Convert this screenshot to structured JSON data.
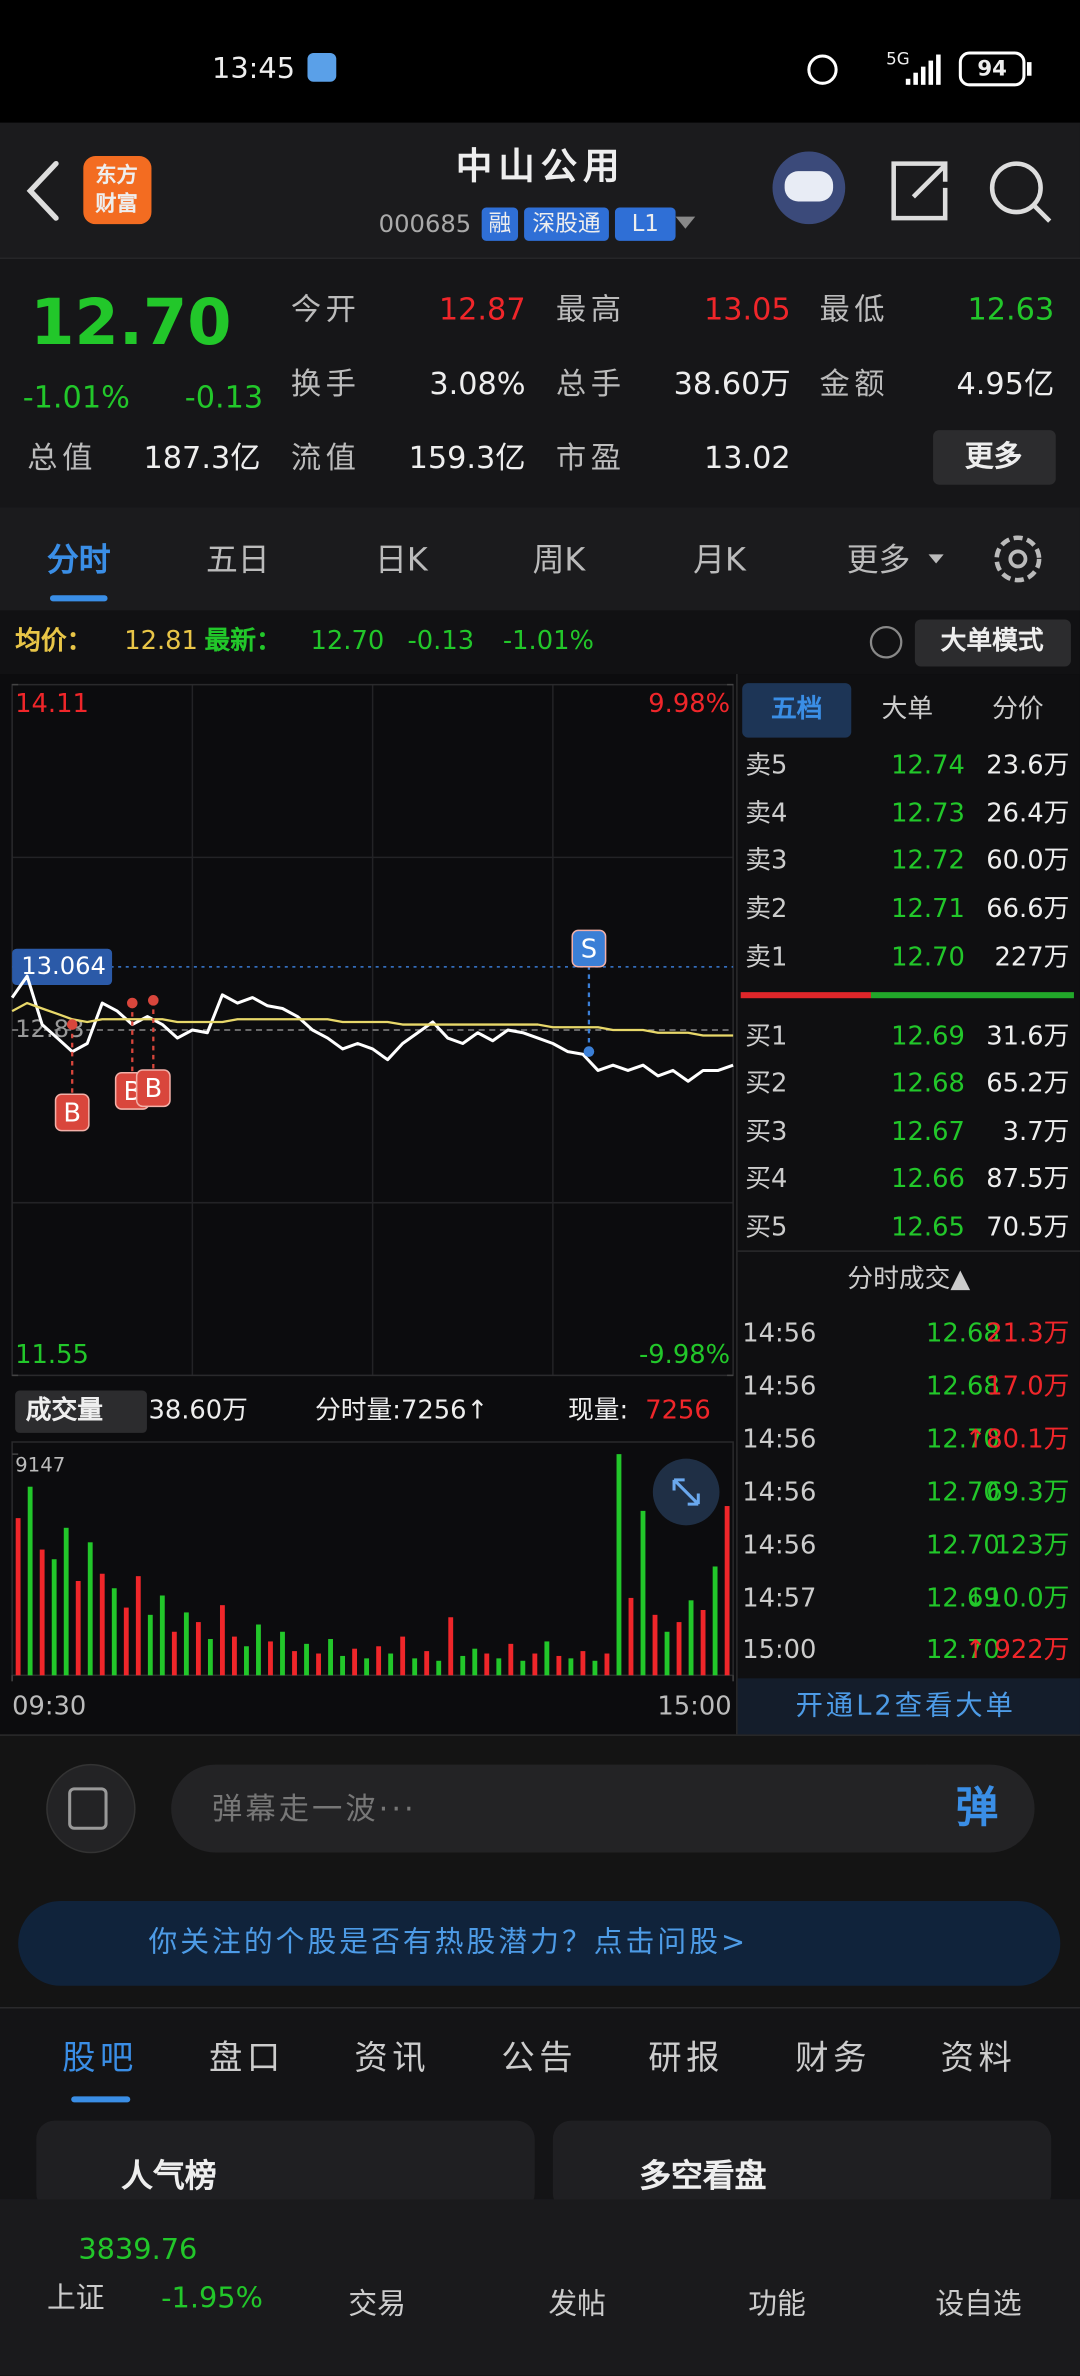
{
  "status_bar": {
    "time": "13:45",
    "network": "5G",
    "battery": "94"
  },
  "header": {
    "logo": [
      "东方",
      "财富"
    ],
    "title": "中山公用",
    "code": "000685",
    "badges": [
      "融",
      "深股通",
      "L1"
    ]
  },
  "quote": {
    "price": "12.70",
    "change_pct": "-1.01%",
    "change": "-0.13",
    "color": "#22c72a",
    "fields": [
      {
        "label": "今开",
        "value": "12.87",
        "color": "#f0262a"
      },
      {
        "label": "最高",
        "value": "13.05",
        "color": "#f0262a"
      },
      {
        "label": "最低",
        "value": "12.63",
        "color": "#22c72a"
      },
      {
        "label": "换手",
        "value": "3.08%",
        "color": "#eeeeee"
      },
      {
        "label": "总手",
        "value": "38.60万",
        "color": "#eeeeee"
      },
      {
        "label": "金额",
        "value": "4.95亿",
        "color": "#eeeeee"
      },
      {
        "label": "总值",
        "value": "187.3亿",
        "color": "#eeeeee"
      },
      {
        "label": "流值",
        "value": "159.3亿",
        "color": "#eeeeee"
      },
      {
        "label": "市盈",
        "value": "13.02",
        "color": "#eeeeee"
      }
    ],
    "more": "更多"
  },
  "period_tabs": [
    "分时",
    "五日",
    "日K",
    "周K",
    "月K",
    "更多"
  ],
  "summary": {
    "avg_label": "均价：",
    "avg": "12.81",
    "latest_label": "最新：",
    "latest": "12.70",
    "change": "-0.13",
    "change_pct": "-1.01%",
    "mode": "大单模式"
  },
  "chart_data": [
    {
      "type": "line",
      "x": [
        0,
        5,
        10,
        15,
        20,
        25,
        30,
        35,
        40,
        45,
        50,
        55,
        60,
        65,
        70,
        75,
        80,
        85,
        90,
        95,
        100,
        105,
        110,
        115,
        120,
        125,
        130,
        135,
        140,
        145,
        150,
        155,
        160,
        165,
        170,
        175,
        180,
        185,
        190,
        195,
        200,
        205,
        210,
        215,
        220,
        225,
        230,
        235,
        240
      ],
      "xlim": [
        0,
        240
      ],
      "xticks": [
        {
          "value": 0,
          "label": "09:30"
        },
        {
          "value": 240,
          "label": "15:00"
        }
      ],
      "ylim": [
        11.55,
        14.11
      ],
      "yticks": [
        14.11,
        11.55
      ],
      "y2lim": [
        -9.98,
        9.98
      ],
      "y2ticks": [
        {
          "value": 9.98,
          "label": "9.98%"
        },
        {
          "value": -9.98,
          "label": "-9.98%"
        }
      ],
      "reference": 12.83,
      "crosshair": 13.064,
      "series": [
        {
          "name": "最新",
          "color": "#ffffff",
          "values": [
            12.95,
            13.03,
            12.85,
            12.8,
            12.75,
            12.78,
            12.93,
            12.9,
            12.85,
            12.88,
            12.85,
            12.8,
            12.83,
            12.82,
            12.96,
            12.93,
            12.95,
            12.92,
            12.91,
            12.88,
            12.83,
            12.8,
            12.76,
            12.78,
            12.76,
            12.72,
            12.78,
            12.82,
            12.86,
            12.8,
            12.78,
            12.82,
            12.79,
            12.83,
            12.82,
            12.8,
            12.78,
            12.75,
            12.74,
            12.68,
            12.7,
            12.68,
            12.7,
            12.66,
            12.68,
            12.64,
            12.68,
            12.68,
            12.7
          ]
        },
        {
          "name": "均价",
          "color": "#e8d86a",
          "values": [
            12.9,
            12.93,
            12.91,
            12.89,
            12.87,
            12.86,
            12.87,
            12.87,
            12.87,
            12.87,
            12.87,
            12.86,
            12.86,
            12.86,
            12.86,
            12.87,
            12.87,
            12.87,
            12.87,
            12.87,
            12.87,
            12.87,
            12.86,
            12.86,
            12.86,
            12.86,
            12.85,
            12.85,
            12.85,
            12.85,
            12.85,
            12.85,
            12.85,
            12.85,
            12.85,
            12.85,
            12.84,
            12.84,
            12.84,
            12.84,
            12.83,
            12.83,
            12.83,
            12.82,
            12.82,
            12.82,
            12.81,
            12.81,
            12.81
          ]
        }
      ],
      "markers": [
        {
          "label": "B",
          "x": 20,
          "value": 12.85
        },
        {
          "label": "B",
          "x": 40,
          "value": 12.93
        },
        {
          "label": "B",
          "x": 47,
          "value": 12.94
        },
        {
          "label": "S",
          "x": 192,
          "value": 12.75
        }
      ]
    },
    {
      "type": "bar",
      "x": [
        2,
        6,
        10,
        14,
        18,
        22,
        26,
        30,
        34,
        38,
        42,
        46,
        50,
        54,
        58,
        62,
        66,
        70,
        74,
        78,
        82,
        86,
        90,
        94,
        98,
        102,
        106,
        110,
        114,
        118,
        122,
        126,
        130,
        134,
        138,
        142,
        146,
        150,
        154,
        158,
        162,
        166,
        170,
        174,
        178,
        182,
        186,
        190,
        194,
        198,
        202,
        206,
        210,
        214,
        218,
        222,
        226,
        230,
        234,
        238
      ],
      "xlim": [
        0,
        240
      ],
      "ylim": [
        0,
        9147
      ],
      "yticks": [
        9147
      ],
      "values": [
        6500,
        7800,
        5200,
        4800,
        6100,
        3900,
        5500,
        4200,
        3600,
        2800,
        4100,
        2500,
        3300,
        1800,
        2600,
        2200,
        1500,
        2900,
        1600,
        1200,
        2100,
        1400,
        1800,
        1000,
        1300,
        900,
        1500,
        800,
        1100,
        700,
        1200,
        900,
        1600,
        700,
        1000,
        600,
        2400,
        800,
        1100,
        900,
        700,
        1300,
        600,
        900,
        1400,
        800,
        700,
        1000,
        600,
        900,
        9147,
        3200,
        6800,
        2500,
        1800,
        2200,
        3100,
        2700,
        4500,
        7000
      ],
      "colors": [
        "#f0262a",
        "#22c72a",
        "#f0262a",
        "#22c72a",
        "#22c72a",
        "#f0262a",
        "#22c72a",
        "#f0262a",
        "#22c72a",
        "#f0262a",
        "#f0262a",
        "#22c72a",
        "#22c72a",
        "#f0262a",
        "#22c72a",
        "#f0262a",
        "#22c72a",
        "#f0262a",
        "#f0262a",
        "#22c72a",
        "#22c72a",
        "#f0262a",
        "#22c72a",
        "#f0262a",
        "#22c72a",
        "#f0262a",
        "#22c72a",
        "#22c72a",
        "#f0262a",
        "#22c72a",
        "#f0262a",
        "#22c72a",
        "#f0262a",
        "#22c72a",
        "#f0262a",
        "#22c72a",
        "#f0262a",
        "#22c72a",
        "#22c72a",
        "#f0262a",
        "#22c72a",
        "#f0262a",
        "#22c72a",
        "#f0262a",
        "#22c72a",
        "#f0262a",
        "#22c72a",
        "#f0262a",
        "#22c72a",
        "#f0262a",
        "#22c72a",
        "#f0262a",
        "#22c72a",
        "#f0262a",
        "#22c72a",
        "#f0262a",
        "#22c72a",
        "#f0262a",
        "#22c72a",
        "#f0262a"
      ]
    }
  ],
  "volume_header": {
    "title": "成交量",
    "total": "38.60万",
    "minute": "分时量:7256↑",
    "current_label": "现量:",
    "current": "7256"
  },
  "order_book": {
    "tabs": [
      "五档",
      "大单",
      "分价"
    ],
    "asks": [
      {
        "label": "卖5",
        "price": "12.74",
        "volume": "23.6万"
      },
      {
        "label": "卖4",
        "price": "12.73",
        "volume": "26.4万"
      },
      {
        "label": "卖3",
        "price": "12.72",
        "volume": "60.0万"
      },
      {
        "label": "卖2",
        "price": "12.71",
        "volume": "66.6万"
      },
      {
        "label": "卖1",
        "price": "12.70",
        "volume": "227万"
      }
    ],
    "bids": [
      {
        "label": "买1",
        "price": "12.69",
        "volume": "31.6万"
      },
      {
        "label": "买2",
        "price": "12.68",
        "volume": "65.2万"
      },
      {
        "label": "买3",
        "price": "12.67",
        "volume": "3.7万"
      },
      {
        "label": "买4",
        "price": "12.66",
        "volume": "87.5万"
      },
      {
        "label": "买5",
        "price": "12.65",
        "volume": "70.5万"
      }
    ]
  },
  "trades": {
    "title": "分时成交▲",
    "rows": [
      {
        "time": "14:56",
        "price": "12.68",
        "volume": "21.3万",
        "color": "#f0262a"
      },
      {
        "time": "14:56",
        "price": "12.68",
        "volume": "17.0万",
        "color": "#f0262a"
      },
      {
        "time": "14:56",
        "price": "12.70",
        "volume": "↑80.1万",
        "color": "#f0262a"
      },
      {
        "time": "14:56",
        "price": "12.70",
        "volume": "69.3万",
        "color": "#22c72a"
      },
      {
        "time": "14:56",
        "price": "12.70",
        "volume": "123万",
        "color": "#22c72a"
      },
      {
        "time": "14:57",
        "price": "12.69",
        "volume": "↓10.0万",
        "color": "#22c72a"
      },
      {
        "time": "15:00",
        "price": "12.70",
        "volume": "↑ 922万",
        "color": "#f0262a"
      }
    ],
    "upgrade": "开通L2查看大单"
  },
  "danmu": {
    "placeholder": "弹幕走一波···",
    "button": "弹"
  },
  "banner": "你关注的个股是否有热股潜力？点击问股>",
  "content_tabs": [
    "股吧",
    "盘口",
    "资讯",
    "公告",
    "研报",
    "财务",
    "资料"
  ],
  "cards": [
    "人气榜",
    "多空看盘"
  ],
  "bottom_nav": {
    "index_value": "3839.76",
    "index_name": "上证",
    "index_change": "-1.95%",
    "items": [
      "交易",
      "发帖",
      "功能",
      "设自选"
    ]
  }
}
